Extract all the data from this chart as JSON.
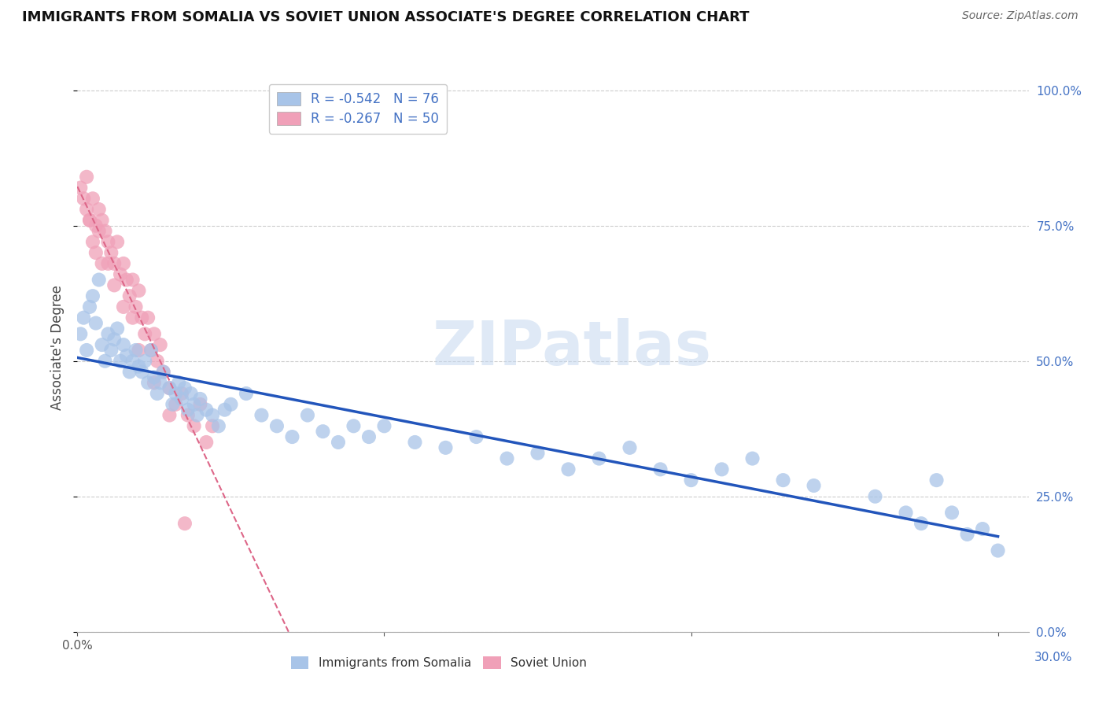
{
  "title": "IMMIGRANTS FROM SOMALIA VS SOVIET UNION ASSOCIATE'S DEGREE CORRELATION CHART",
  "source": "Source: ZipAtlas.com",
  "ylabel": "Associate's Degree",
  "somalia_R": -0.542,
  "somalia_N": 76,
  "soviet_R": -0.267,
  "soviet_N": 50,
  "somalia_color": "#a8c4e8",
  "soviet_color": "#f0a0b8",
  "somalia_line_color": "#2255bb",
  "soviet_line_color": "#dd6688",
  "watermark_text": "ZIPatlas",
  "somalia_points_x": [
    0.001,
    0.002,
    0.003,
    0.004,
    0.005,
    0.006,
    0.007,
    0.008,
    0.009,
    0.01,
    0.011,
    0.012,
    0.013,
    0.014,
    0.015,
    0.016,
    0.017,
    0.018,
    0.019,
    0.02,
    0.021,
    0.022,
    0.023,
    0.024,
    0.025,
    0.026,
    0.027,
    0.028,
    0.03,
    0.031,
    0.032,
    0.033,
    0.034,
    0.035,
    0.036,
    0.037,
    0.038,
    0.039,
    0.04,
    0.042,
    0.044,
    0.046,
    0.048,
    0.05,
    0.055,
    0.06,
    0.065,
    0.07,
    0.075,
    0.08,
    0.085,
    0.09,
    0.095,
    0.1,
    0.11,
    0.12,
    0.13,
    0.14,
    0.15,
    0.16,
    0.17,
    0.18,
    0.19,
    0.2,
    0.21,
    0.22,
    0.23,
    0.24,
    0.26,
    0.27,
    0.275,
    0.28,
    0.285,
    0.29,
    0.295,
    0.3
  ],
  "somalia_points_y": [
    0.55,
    0.58,
    0.52,
    0.6,
    0.62,
    0.57,
    0.65,
    0.53,
    0.5,
    0.55,
    0.52,
    0.54,
    0.56,
    0.5,
    0.53,
    0.51,
    0.48,
    0.5,
    0.52,
    0.49,
    0.48,
    0.5,
    0.46,
    0.52,
    0.47,
    0.44,
    0.46,
    0.48,
    0.45,
    0.42,
    0.44,
    0.46,
    0.43,
    0.45,
    0.41,
    0.44,
    0.42,
    0.4,
    0.43,
    0.41,
    0.4,
    0.38,
    0.41,
    0.42,
    0.44,
    0.4,
    0.38,
    0.36,
    0.4,
    0.37,
    0.35,
    0.38,
    0.36,
    0.38,
    0.35,
    0.34,
    0.36,
    0.32,
    0.33,
    0.3,
    0.32,
    0.34,
    0.3,
    0.28,
    0.3,
    0.32,
    0.28,
    0.27,
    0.25,
    0.22,
    0.2,
    0.28,
    0.22,
    0.18,
    0.19,
    0.15
  ],
  "soviet_points_x": [
    0.001,
    0.002,
    0.003,
    0.004,
    0.005,
    0.006,
    0.007,
    0.008,
    0.009,
    0.01,
    0.011,
    0.012,
    0.013,
    0.014,
    0.015,
    0.016,
    0.017,
    0.018,
    0.019,
    0.02,
    0.021,
    0.022,
    0.023,
    0.024,
    0.025,
    0.026,
    0.027,
    0.028,
    0.03,
    0.032,
    0.034,
    0.036,
    0.038,
    0.04,
    0.042,
    0.044,
    0.003,
    0.004,
    0.005,
    0.006,
    0.007,
    0.008,
    0.01,
    0.012,
    0.015,
    0.018,
    0.02,
    0.025,
    0.03,
    0.035
  ],
  "soviet_points_y": [
    0.82,
    0.8,
    0.78,
    0.76,
    0.8,
    0.75,
    0.78,
    0.76,
    0.74,
    0.72,
    0.7,
    0.68,
    0.72,
    0.66,
    0.68,
    0.65,
    0.62,
    0.65,
    0.6,
    0.63,
    0.58,
    0.55,
    0.58,
    0.52,
    0.55,
    0.5,
    0.53,
    0.48,
    0.45,
    0.42,
    0.44,
    0.4,
    0.38,
    0.42,
    0.35,
    0.38,
    0.84,
    0.76,
    0.72,
    0.7,
    0.74,
    0.68,
    0.68,
    0.64,
    0.6,
    0.58,
    0.52,
    0.46,
    0.4,
    0.2
  ],
  "xlim": [
    0.0,
    0.31
  ],
  "ylim": [
    0.0,
    1.05
  ],
  "yticks": [
    0.0,
    0.25,
    0.5,
    0.75,
    1.0
  ],
  "yticklabels": [
    "",
    "",
    "",
    "",
    ""
  ],
  "right_yticklabels": [
    "0.0%",
    "25.0%",
    "50.0%",
    "75.0%",
    "100.0%"
  ],
  "xtick_label": "0.0%",
  "right_xlabel": "30.0%"
}
